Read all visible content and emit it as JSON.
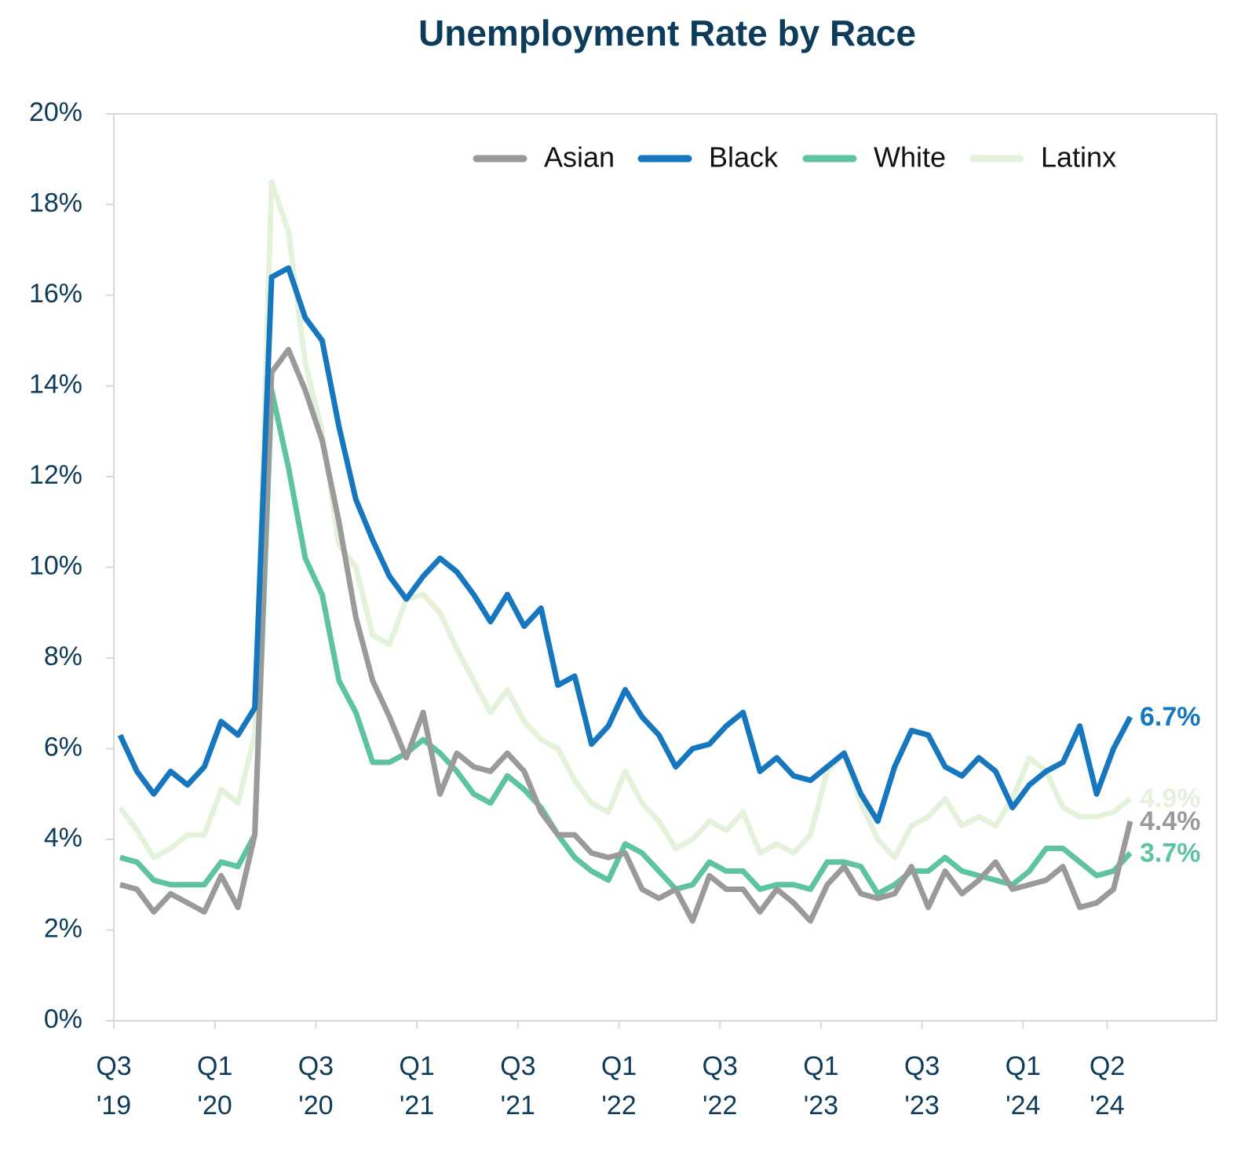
{
  "chart_data": {
    "type": "line",
    "title": "Unemployment Rate by Race",
    "categories": [
      "Q3\n'19",
      null,
      null,
      null,
      null,
      null,
      "Q1\n'20",
      null,
      null,
      null,
      null,
      null,
      "Q3\n'20",
      null,
      null,
      null,
      null,
      null,
      "Q1\n'21",
      null,
      null,
      null,
      null,
      null,
      "Q3\n'21",
      null,
      null,
      null,
      null,
      null,
      "Q1\n'22",
      null,
      null,
      null,
      null,
      null,
      "Q3\n'22",
      null,
      null,
      null,
      null,
      null,
      "Q1\n'23",
      null,
      null,
      null,
      null,
      null,
      "Q3\n'23",
      null,
      null,
      null,
      null,
      null,
      "Q1\n'24",
      null,
      null,
      null,
      null,
      "Q2\n'24",
      null
    ],
    "series": [
      {
        "name": "Asian",
        "color": "#9a9a9a",
        "values": [
          3.0,
          2.9,
          2.4,
          2.8,
          2.6,
          2.4,
          3.2,
          2.5,
          4.1,
          14.3,
          14.8,
          13.9,
          12.8,
          11.0,
          8.9,
          7.5,
          6.7,
          5.8,
          6.8,
          5.0,
          5.9,
          5.6,
          5.5,
          5.9,
          5.5,
          4.6,
          4.1,
          4.1,
          3.7,
          3.6,
          3.7,
          2.9,
          2.7,
          2.9,
          2.2,
          3.2,
          2.9,
          2.9,
          2.4,
          2.9,
          2.6,
          2.2,
          3.0,
          3.4,
          2.8,
          2.7,
          2.8,
          3.4,
          2.5,
          3.3,
          2.8,
          3.1,
          3.5,
          2.9,
          3.0,
          3.1,
          3.4,
          2.5,
          2.6,
          2.9,
          4.4
        ],
        "value_labels": [
          null,
          null,
          null,
          null,
          null,
          null,
          null,
          null,
          null,
          null,
          null,
          null,
          null,
          null,
          null,
          null,
          null,
          null,
          null,
          null,
          null,
          null,
          null,
          null,
          null,
          null,
          null,
          null,
          null,
          null,
          null,
          null,
          null,
          null,
          null,
          null,
          null,
          null,
          null,
          null,
          null,
          null,
          null,
          null,
          null,
          null,
          null,
          null,
          null,
          null,
          null,
          null,
          null,
          null,
          null,
          null,
          null,
          null,
          null,
          null,
          "4.4%"
        ]
      },
      {
        "name": "Black",
        "color": "#1677bf",
        "values": [
          6.3,
          5.5,
          5.0,
          5.5,
          5.2,
          5.6,
          6.6,
          6.3,
          6.9,
          16.4,
          16.6,
          15.5,
          15.0,
          13.1,
          11.5,
          10.6,
          9.8,
          9.3,
          9.8,
          10.2,
          9.9,
          9.4,
          8.8,
          9.4,
          8.7,
          9.1,
          7.4,
          7.6,
          6.1,
          6.5,
          7.3,
          6.7,
          6.3,
          5.6,
          6.0,
          6.1,
          6.5,
          6.8,
          5.5,
          5.8,
          5.4,
          5.3,
          5.6,
          5.9,
          5.0,
          4.4,
          5.6,
          6.4,
          6.3,
          5.6,
          5.4,
          5.8,
          5.5,
          4.7,
          5.2,
          5.5,
          5.7,
          6.5,
          5.0,
          6.0,
          6.7
        ],
        "value_labels": [
          null,
          null,
          null,
          null,
          null,
          null,
          null,
          null,
          null,
          null,
          null,
          null,
          null,
          null,
          null,
          null,
          null,
          null,
          null,
          null,
          null,
          null,
          null,
          null,
          null,
          null,
          null,
          null,
          null,
          null,
          null,
          null,
          null,
          null,
          null,
          null,
          null,
          null,
          null,
          null,
          null,
          null,
          null,
          null,
          null,
          null,
          null,
          null,
          null,
          null,
          null,
          null,
          null,
          null,
          null,
          null,
          null,
          null,
          null,
          null,
          "6.7%"
        ]
      },
      {
        "name": "White",
        "color": "#5ec4a0",
        "values": [
          3.6,
          3.5,
          3.1,
          3.0,
          3.0,
          3.0,
          3.5,
          3.4,
          4.1,
          13.9,
          12.2,
          10.2,
          9.4,
          7.5,
          6.8,
          5.7,
          5.7,
          5.9,
          6.2,
          5.9,
          5.5,
          5.0,
          4.8,
          5.4,
          5.1,
          4.7,
          4.1,
          3.6,
          3.3,
          3.1,
          3.9,
          3.7,
          3.3,
          2.9,
          3.0,
          3.5,
          3.3,
          3.3,
          2.9,
          3.0,
          3.0,
          2.9,
          3.5,
          3.5,
          3.4,
          2.8,
          3.0,
          3.3,
          3.3,
          3.6,
          3.3,
          3.2,
          3.1,
          3.0,
          3.3,
          3.8,
          3.8,
          3.5,
          3.2,
          3.3,
          3.7
        ],
        "value_labels": [
          null,
          null,
          null,
          null,
          null,
          null,
          null,
          null,
          null,
          null,
          null,
          null,
          null,
          null,
          null,
          null,
          null,
          null,
          null,
          null,
          null,
          null,
          null,
          null,
          null,
          null,
          null,
          null,
          null,
          null,
          null,
          null,
          null,
          null,
          null,
          null,
          null,
          null,
          null,
          null,
          null,
          null,
          null,
          null,
          null,
          null,
          null,
          null,
          null,
          null,
          null,
          null,
          null,
          null,
          null,
          null,
          null,
          null,
          null,
          null,
          "3.7%"
        ]
      },
      {
        "name": "Latinx",
        "color": "#e4f2dc",
        "values": [
          4.7,
          4.2,
          3.6,
          3.8,
          4.1,
          4.1,
          5.1,
          4.8,
          6.3,
          18.5,
          17.4,
          14.5,
          13.0,
          10.5,
          10.0,
          8.5,
          8.3,
          9.3,
          9.4,
          9.0,
          8.2,
          7.5,
          6.8,
          7.3,
          6.6,
          6.2,
          6.0,
          5.3,
          4.8,
          4.6,
          5.5,
          4.8,
          4.4,
          3.8,
          4.0,
          4.4,
          4.2,
          4.6,
          3.7,
          3.9,
          3.7,
          4.1,
          5.5,
          5.9,
          4.8,
          4.0,
          3.6,
          4.3,
          4.5,
          4.9,
          4.3,
          4.5,
          4.3,
          4.9,
          5.8,
          5.5,
          4.7,
          4.5,
          4.5,
          4.6,
          4.9
        ],
        "value_labels": [
          null,
          null,
          null,
          null,
          null,
          null,
          null,
          null,
          null,
          null,
          null,
          null,
          null,
          null,
          null,
          null,
          null,
          null,
          null,
          null,
          null,
          null,
          null,
          null,
          null,
          null,
          null,
          null,
          null,
          null,
          null,
          null,
          null,
          null,
          null,
          null,
          null,
          null,
          null,
          null,
          null,
          null,
          null,
          null,
          null,
          null,
          null,
          null,
          null,
          null,
          null,
          null,
          null,
          null,
          null,
          null,
          null,
          null,
          null,
          null,
          "4.9%"
        ]
      }
    ],
    "ylim": [
      0,
      20
    ],
    "yticks": [
      {
        "value": 0,
        "label": "0%"
      },
      {
        "value": 2,
        "label": "2%"
      },
      {
        "value": 4,
        "label": "4%"
      },
      {
        "value": 6,
        "label": "6%"
      },
      {
        "value": 8,
        "label": "8%"
      },
      {
        "value": 10,
        "label": "10%"
      },
      {
        "value": 12,
        "label": "12%"
      },
      {
        "value": 14,
        "label": "14%"
      },
      {
        "value": 16,
        "label": "16%"
      },
      {
        "value": 18,
        "label": "18%"
      },
      {
        "value": 20,
        "label": "20%"
      }
    ],
    "grid": false,
    "legend": "upper right"
  }
}
